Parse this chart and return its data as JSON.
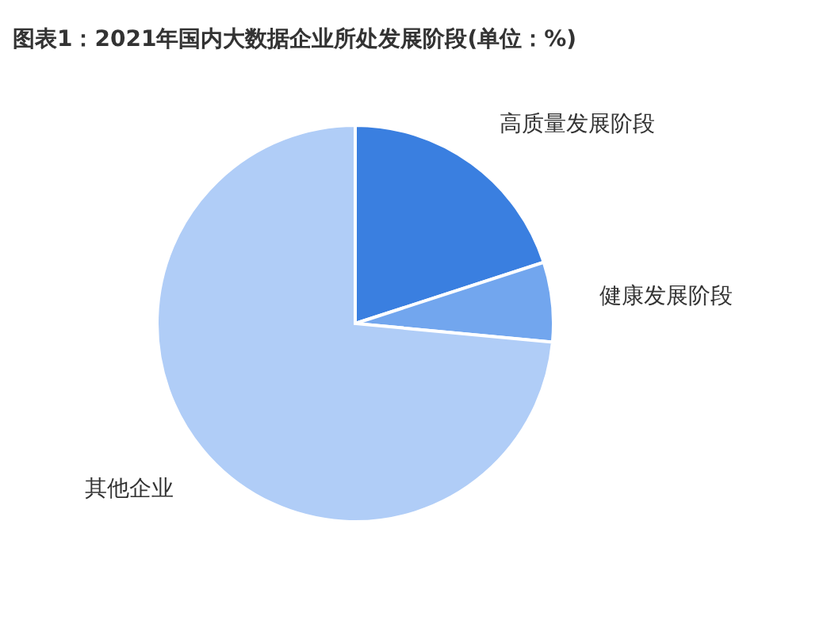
{
  "chart_data": {
    "type": "pie",
    "title": "图表1：2021年国内大数据企业所处发展阶段(单位：%)",
    "categories": [
      "高质量发展阶段",
      "健康发展阶段",
      "其他企业"
    ],
    "values": [
      20,
      6.5,
      73.5
    ],
    "colors": [
      "#3a7fe0",
      "#72a6ee",
      "#b0cdf7"
    ]
  }
}
